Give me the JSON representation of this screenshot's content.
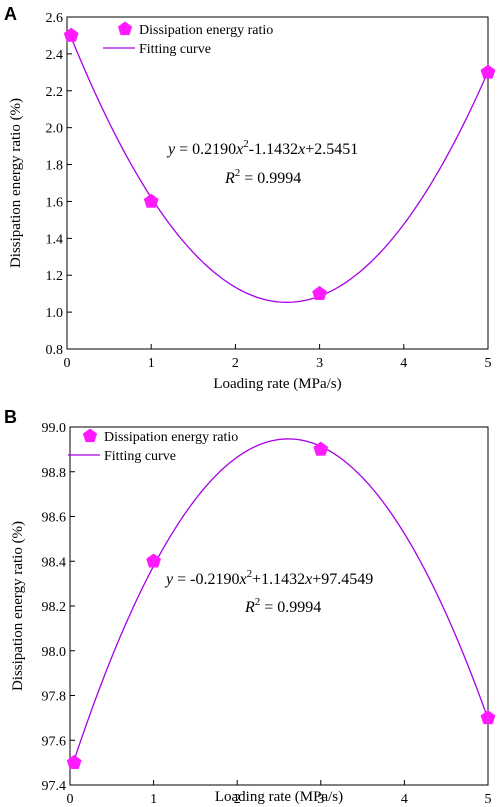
{
  "chart_data": [
    {
      "type": "scatter",
      "panel_label": "A",
      "xlabel": "Loading rate (MPa/s)",
      "ylabel": "Dissipation energy ratio (%)",
      "xlim": [
        0,
        5
      ],
      "ylim": [
        0.8,
        2.6
      ],
      "xticks": [
        "0",
        "1",
        "2",
        "3",
        "4",
        "5"
      ],
      "yticks": [
        "0.8",
        "1.0",
        "1.2",
        "1.4",
        "1.6",
        "1.8",
        "2.0",
        "2.2",
        "2.4",
        "2.6"
      ],
      "x": [
        0.05,
        1,
        3,
        5
      ],
      "y": [
        2.5,
        1.6,
        1.1,
        2.3
      ],
      "fit": {
        "a": 0.219,
        "b": -1.1432,
        "c": 2.5451,
        "x_range": [
          0.05,
          5
        ]
      },
      "equation": {
        "prefix": "y",
        "body_1": " = 0.2190",
        "var_1": "x",
        "exp": "2",
        "body_2": "-1.1432",
        "var_2": "x",
        "body_3": "+2.5451"
      },
      "r2": {
        "prefix": "R",
        "exp": "2",
        "body": " = 0.9994"
      },
      "legend": {
        "placement": "top-left",
        "scatter_label": "Dissipation energy ratio",
        "line_label": "Fitting curve"
      },
      "marker_color": "#ff1aff",
      "line_color": "#a600e6"
    },
    {
      "type": "scatter",
      "panel_label": "B",
      "xlabel": "Loading rate (MPa/s)",
      "ylabel": "Dissipation energy ratio (%)",
      "xlim": [
        0,
        5
      ],
      "ylim": [
        97.4,
        99.0
      ],
      "xticks": [
        "0",
        "1",
        "2",
        "3",
        "4",
        "5"
      ],
      "yticks": [
        "97.4",
        "97.6",
        "97.8",
        "98.0",
        "98.2",
        "98.4",
        "98.6",
        "98.8",
        "99.0"
      ],
      "x": [
        0.05,
        1,
        3,
        5
      ],
      "y": [
        97.5,
        98.4,
        98.9,
        97.7
      ],
      "fit": {
        "a": -0.219,
        "b": 1.1432,
        "c": 97.4549,
        "x_range": [
          0.05,
          5
        ]
      },
      "equation": {
        "prefix": "y",
        "body_1": " = -0.2190",
        "var_1": "x",
        "exp": "2",
        "body_2": "+1.1432",
        "var_2": "x",
        "body_3": "+97.4549"
      },
      "r2": {
        "prefix": "R",
        "exp": "2",
        "body": " = 0.9994"
      },
      "legend": {
        "placement": "top-left",
        "scatter_label": "Dissipation energy ratio",
        "line_label": "Fitting curve"
      },
      "marker_color": "#ff1aff",
      "line_color": "#a600e6"
    }
  ]
}
